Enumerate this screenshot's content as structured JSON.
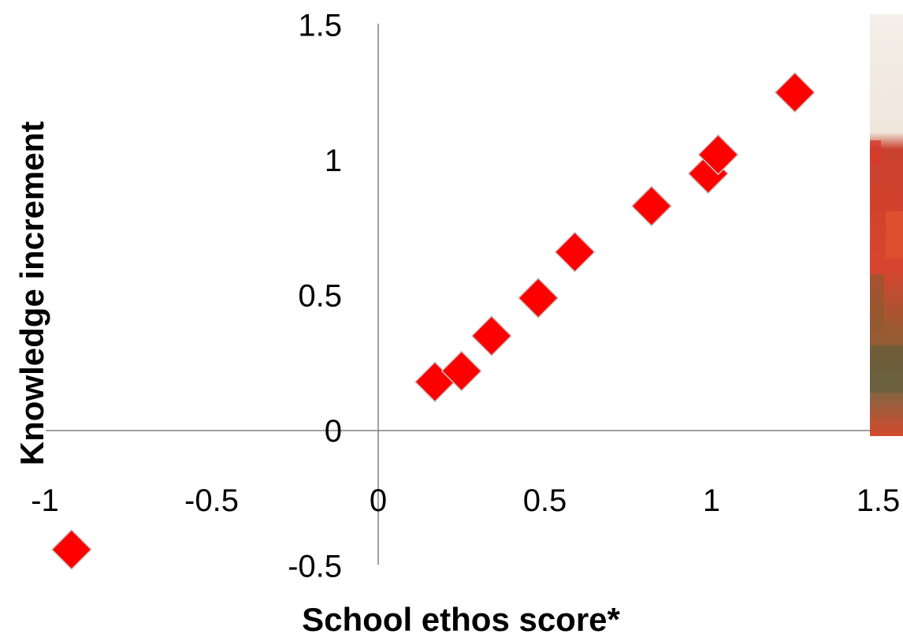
{
  "chart_data": {
    "type": "scatter",
    "title": "",
    "xlabel": "School ethos score*",
    "ylabel": "Knowledge increment",
    "xlim": [
      -1,
      1.5
    ],
    "ylim": [
      -0.5,
      1.5
    ],
    "x_ticks": [
      "-1",
      "-0.5",
      "0",
      "0.5",
      "1",
      "1.5"
    ],
    "y_ticks": [
      "1.5",
      "1",
      "0.5",
      "0",
      "-0.5"
    ],
    "grid": false,
    "legend": "none",
    "marker": "diamond",
    "marker_color": "#FF0000",
    "points": [
      {
        "x": -0.92,
        "y": -0.44
      },
      {
        "x": 0.17,
        "y": 0.18
      },
      {
        "x": 0.25,
        "y": 0.22
      },
      {
        "x": 0.34,
        "y": 0.35
      },
      {
        "x": 0.48,
        "y": 0.49
      },
      {
        "x": 0.59,
        "y": 0.66
      },
      {
        "x": 0.82,
        "y": 0.83
      },
      {
        "x": 0.99,
        "y": 0.95
      },
      {
        "x": 1.02,
        "y": 1.02
      },
      {
        "x": 1.25,
        "y": 1.25
      }
    ]
  },
  "decoration": {
    "photo_icon": "photo-strip-icon"
  }
}
